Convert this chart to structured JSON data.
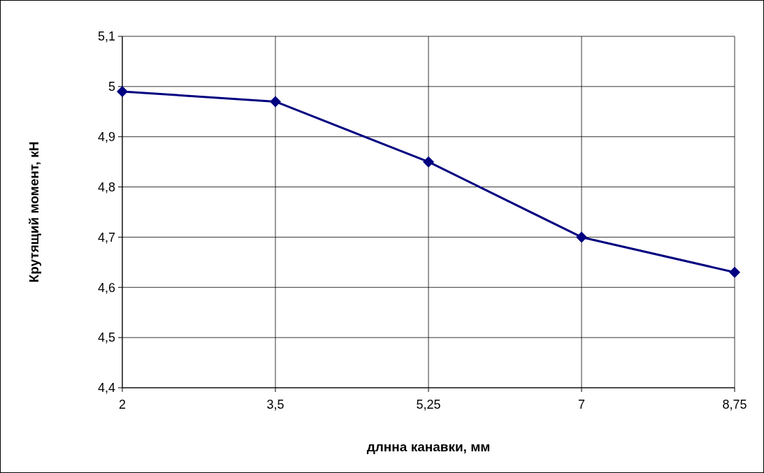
{
  "chart_data": {
    "type": "line",
    "xlabel": "длнна канавки, мм",
    "ylabel": "Крутящий момент, кН",
    "categories": [
      "2",
      "3,5",
      "5,25",
      "7",
      "8,75"
    ],
    "series": [
      {
        "color": "#000080",
        "values": [
          4.99,
          4.97,
          4.85,
          4.7,
          4.63
        ]
      }
    ],
    "ylim": [
      4.4,
      5.1
    ],
    "yticks": [
      {
        "value": 4.4,
        "label": "4,4"
      },
      {
        "value": 4.5,
        "label": "4,5"
      },
      {
        "value": 4.6,
        "label": "4,6"
      },
      {
        "value": 4.7,
        "label": "4,7"
      },
      {
        "value": 4.8,
        "label": "4,8"
      },
      {
        "value": 4.9,
        "label": "4,9"
      },
      {
        "value": 5,
        "label": "5"
      },
      {
        "value": 5.1,
        "label": "5,1"
      }
    ],
    "grid": true,
    "marker": "diamond",
    "line_style": "solid"
  }
}
